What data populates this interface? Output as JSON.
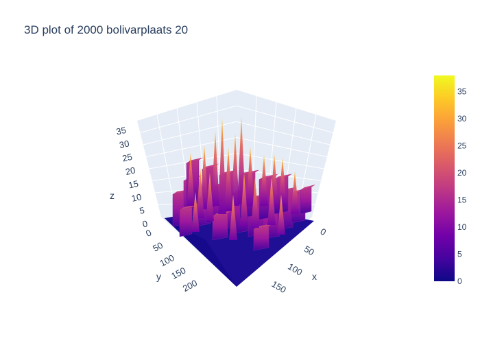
{
  "chart_data": {
    "type": "surface",
    "title": "3D plot of 2000 bolivarplaats 20",
    "axes": {
      "x": {
        "label": "x",
        "ticks": [
          "0",
          "50",
          "100",
          "150"
        ],
        "range": [
          0,
          180
        ]
      },
      "y": {
        "label": "y",
        "ticks": [
          "0",
          "50",
          "100",
          "150",
          "200"
        ],
        "range": [
          0,
          240
        ]
      },
      "z": {
        "label": "z",
        "ticks": [
          "0",
          "5",
          "10",
          "15",
          "20",
          "25",
          "30",
          "35"
        ],
        "range": [
          0,
          38
        ]
      }
    },
    "grid": true,
    "colorbar": {
      "ticks": [
        "0",
        "5",
        "10",
        "15",
        "20",
        "25",
        "30",
        "35"
      ],
      "range": [
        0,
        38
      ],
      "colors": [
        "#0d0887",
        "#46039f",
        "#7201a8",
        "#9c179e",
        "#bd3786",
        "#d8576b",
        "#ed7953",
        "#fb9f3a",
        "#fdca26",
        "#f0f921"
      ]
    },
    "surface_summary": {
      "base_value": 0,
      "block_heights_typical": [
        5,
        15
      ],
      "peak_max": 37
    }
  }
}
